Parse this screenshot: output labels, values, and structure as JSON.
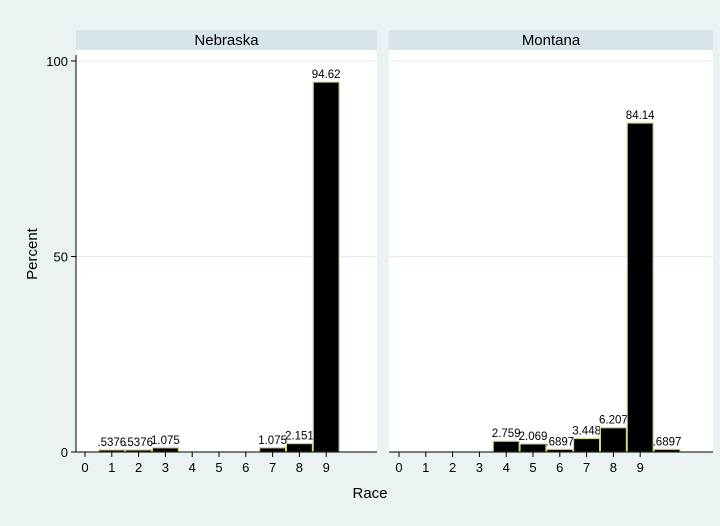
{
  "chart_data": {
    "type": "bar",
    "xlabel": "Race",
    "ylabel": "Percent",
    "ylim": [
      0,
      100
    ],
    "yticks": [
      0,
      50,
      100
    ],
    "xticks": [
      0,
      1,
      2,
      3,
      4,
      5,
      6,
      7,
      8,
      9
    ],
    "grid": true,
    "panels": [
      {
        "title": "Nebraska",
        "bars": [
          {
            "x": 1,
            "value": 0.5376,
            "label": ".5376"
          },
          {
            "x": 2,
            "value": 0.5376,
            "label": ".5376"
          },
          {
            "x": 3,
            "value": 1.075,
            "label": "1.075"
          },
          {
            "x": 7,
            "value": 1.075,
            "label": "1.075"
          },
          {
            "x": 8,
            "value": 2.151,
            "label": "2.151"
          },
          {
            "x": 9,
            "value": 94.62,
            "label": "94.62"
          }
        ]
      },
      {
        "title": "Montana",
        "bars": [
          {
            "x": 4,
            "value": 2.759,
            "label": "2.759"
          },
          {
            "x": 5,
            "value": 2.069,
            "label": "2.069"
          },
          {
            "x": 6,
            "value": 0.6897,
            "label": ".6897"
          },
          {
            "x": 7,
            "value": 3.448,
            "label": "3.448"
          },
          {
            "x": 8,
            "value": 6.207,
            "label": "6.207"
          },
          {
            "x": 9,
            "value": 84.14,
            "label": "84.14"
          },
          {
            "x": 10,
            "value": 0.6897,
            "label": ".6897"
          }
        ]
      }
    ]
  }
}
